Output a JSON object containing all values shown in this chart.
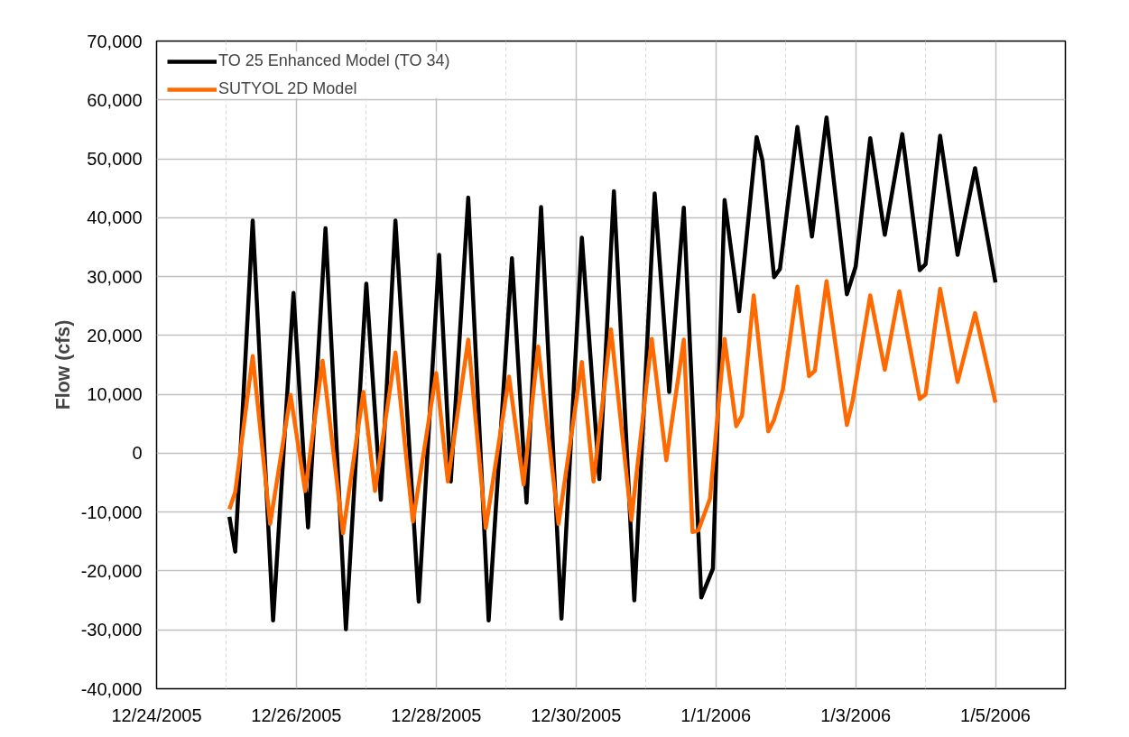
{
  "chart_data": {
    "type": "line",
    "ylabel": "Flow (cfs)",
    "xlim": [
      "2005-12-24",
      "2006-01-06"
    ],
    "xticks": [
      {
        "value": "2005-12-24",
        "label": "12/24/2005"
      },
      {
        "value": "2005-12-25",
        "label": null
      },
      {
        "value": "2005-12-26",
        "label": "12/26/2005"
      },
      {
        "value": "2005-12-27",
        "label": null
      },
      {
        "value": "2005-12-28",
        "label": "12/28/2005"
      },
      {
        "value": "2005-12-29",
        "label": null
      },
      {
        "value": "2005-12-30",
        "label": "12/30/2005"
      },
      {
        "value": "2005-12-31",
        "label": null
      },
      {
        "value": "2006-01-01",
        "label": "1/1/2006"
      },
      {
        "value": "2006-01-02",
        "label": null
      },
      {
        "value": "2006-01-03",
        "label": "1/3/2006"
      },
      {
        "value": "2006-01-04",
        "label": null
      },
      {
        "value": "2006-01-05",
        "label": "1/5/2006"
      }
    ],
    "ylim": [
      -40000,
      70000
    ],
    "yticks": [
      {
        "value": -40000,
        "label": "-40,000"
      },
      {
        "value": -30000,
        "label": "-30,000"
      },
      {
        "value": -20000,
        "label": "-20,000"
      },
      {
        "value": -10000,
        "label": "-10,000"
      },
      0,
      {
        "value": 10000,
        "label": "10,000"
      },
      {
        "value": 20000,
        "label": "20,000"
      },
      {
        "value": 30000,
        "label": "30,000"
      },
      {
        "value": 40000,
        "label": "40,000"
      },
      {
        "value": 50000,
        "label": "50,000"
      },
      {
        "value": 60000,
        "label": "60,000"
      },
      {
        "value": 70000,
        "label": "70,000"
      }
    ],
    "grid": true,
    "legend": "top left",
    "marker": "none",
    "line_style": "solid",
    "series": [
      {
        "name": "TO 25 Enhanced Model (TO 34)",
        "color": "#000000",
        "x": [
          "2005-12-25T01:00",
          "2005-12-25T03:00",
          "2005-12-25T09:00",
          "2005-12-25T16:00",
          "2005-12-25T23:00",
          "2005-12-26T04:00",
          "2005-12-26T10:00",
          "2005-12-26T17:00",
          "2005-12-27T00:00",
          "2005-12-27T05:00",
          "2005-12-27T10:00",
          "2005-12-27T18:00",
          "2005-12-28T01:00",
          "2005-12-28T05:00",
          "2005-12-28T11:00",
          "2005-12-28T18:00",
          "2005-12-29T02:00",
          "2005-12-29T07:00",
          "2005-12-29T12:00",
          "2005-12-29T19:00",
          "2005-12-30T02:00",
          "2005-12-30T08:00",
          "2005-12-30T13:00",
          "2005-12-30T20:00",
          "2005-12-31T03:00",
          "2005-12-31T08:00",
          "2005-12-31T13:00",
          "2005-12-31T19:00",
          "2005-12-31T23:00",
          "2006-01-01T03:00",
          "2006-01-01T08:00",
          "2006-01-01T14:00",
          "2006-01-01T16:00",
          "2006-01-01T20:00",
          "2006-01-01T22:00",
          "2006-01-02T04:00",
          "2006-01-02T09:00",
          "2006-01-02T14:00",
          "2006-01-02T21:00",
          "2006-01-03T00:00",
          "2006-01-03T05:00",
          "2006-01-03T10:00",
          "2006-01-03T16:00",
          "2006-01-03T22:00",
          "2006-01-04T00:00",
          "2006-01-04T05:00",
          "2006-01-04T11:00",
          "2006-01-04T17:00",
          "2006-01-05T00:00"
        ],
        "values": [
          -10800,
          -16700,
          39500,
          -28400,
          27200,
          -12600,
          38200,
          -29900,
          28800,
          -7900,
          39500,
          -25200,
          33700,
          -4800,
          43400,
          -28400,
          33100,
          -8400,
          41800,
          -28100,
          36600,
          -4400,
          44500,
          -25000,
          44100,
          10400,
          41700,
          -24500,
          -19600,
          43000,
          24100,
          53700,
          49700,
          29900,
          31300,
          55400,
          36800,
          57000,
          27000,
          31700,
          53500,
          37100,
          54200,
          31100,
          32100,
          53900,
          33700,
          48400,
          29000
        ]
      },
      {
        "name": "SUTYOL 2D Model",
        "color": "#ff6a00",
        "x": [
          "2005-12-25T01:00",
          "2005-12-25T03:00",
          "2005-12-25T09:00",
          "2005-12-25T15:00",
          "2005-12-25T22:00",
          "2005-12-26T03:00",
          "2005-12-26T09:00",
          "2005-12-26T16:00",
          "2005-12-26T23:00",
          "2005-12-27T03:00",
          "2005-12-27T10:00",
          "2005-12-27T16:00",
          "2005-12-28T00:00",
          "2005-12-28T04:00",
          "2005-12-28T11:00",
          "2005-12-28T17:00",
          "2005-12-29T01:00",
          "2005-12-29T06:00",
          "2005-12-29T11:00",
          "2005-12-29T18:00",
          "2005-12-30T02:00",
          "2005-12-30T06:00",
          "2005-12-30T12:00",
          "2005-12-30T19:00",
          "2005-12-31T02:00",
          "2005-12-31T07:00",
          "2005-12-31T13:00",
          "2005-12-31T16:00",
          "2005-12-31T18:00",
          "2005-12-31T22:00",
          "2006-01-01T03:00",
          "2006-01-01T07:00",
          "2006-01-01T09:00",
          "2006-01-01T13:00",
          "2006-01-01T18:00",
          "2006-01-01T20:00",
          "2006-01-01T23:00",
          "2006-01-02T04:00",
          "2006-01-02T08:00",
          "2006-01-02T10:00",
          "2006-01-02T14:00",
          "2006-01-02T21:00",
          "2006-01-02T23:00",
          "2006-01-03T05:00",
          "2006-01-03T10:00",
          "2006-01-03T15:00",
          "2006-01-03T22:00",
          "2006-01-04T00:00",
          "2006-01-04T05:00",
          "2006-01-04T11:00",
          "2006-01-04T17:00",
          "2006-01-05T00:00"
        ],
        "values": [
          -9500,
          -6600,
          16500,
          -12000,
          9900,
          -6400,
          15700,
          -13600,
          10400,
          -6400,
          17100,
          -11600,
          13600,
          -4800,
          19300,
          -12700,
          13000,
          -5300,
          18100,
          -12000,
          15500,
          -4800,
          21000,
          -11300,
          19400,
          -1200,
          19300,
          -13400,
          -13100,
          -7700,
          19400,
          4600,
          6400,
          26800,
          3700,
          5700,
          10800,
          28300,
          13100,
          14000,
          29200,
          4800,
          9000,
          26800,
          14200,
          27500,
          9200,
          10000,
          27900,
          12100,
          23800,
          8600
        ]
      }
    ]
  }
}
